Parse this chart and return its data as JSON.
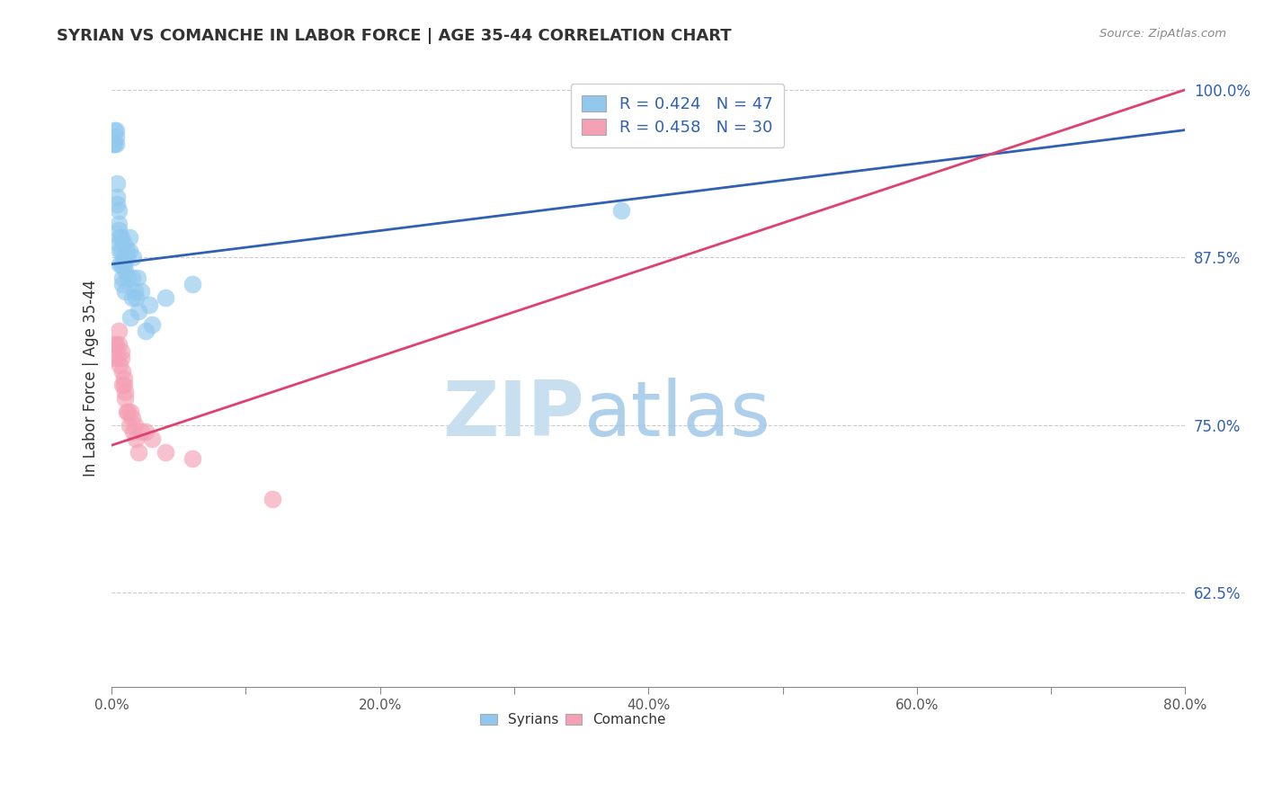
{
  "title": "SYRIAN VS COMANCHE IN LABOR FORCE | AGE 35-44 CORRELATION CHART",
  "source_text": "Source: ZipAtlas.com",
  "ylabel": "In Labor Force | Age 35-44",
  "xlim": [
    0.0,
    0.8
  ],
  "ylim": [
    0.555,
    1.015
  ],
  "xtick_vals": [
    0.0,
    0.1,
    0.2,
    0.3,
    0.4,
    0.5,
    0.6,
    0.7,
    0.8
  ],
  "xtick_labels": [
    "0.0%",
    "",
    "20.0%",
    "",
    "40.0%",
    "",
    "60.0%",
    "",
    "80.0%"
  ],
  "ytick_vals": [
    0.625,
    0.75,
    0.875,
    1.0
  ],
  "ytick_labels": [
    "62.5%",
    "75.0%",
    "87.5%",
    "100.0%"
  ],
  "legend_R_syrian": "0.424",
  "legend_N_syrian": 47,
  "legend_R_comanche": "0.458",
  "legend_N_comanche": 30,
  "syrian_color": "#90C8EE",
  "comanche_color": "#F5A0B5",
  "syrian_line_color": "#3060B0",
  "comanche_line_color": "#E04070",
  "grid_color": "#CCCCCC",
  "background_color": "#FFFFFF",
  "watermark_zip": "ZIP",
  "watermark_atlas": "atlas",
  "watermark_color_zip": "#C8DFF0",
  "watermark_color_atlas": "#A0C8E8",
  "syrian_x": [
    0.001,
    0.002,
    0.002,
    0.003,
    0.003,
    0.003,
    0.004,
    0.004,
    0.004,
    0.005,
    0.005,
    0.005,
    0.005,
    0.006,
    0.006,
    0.006,
    0.007,
    0.007,
    0.007,
    0.008,
    0.008,
    0.008,
    0.009,
    0.009,
    0.009,
    0.01,
    0.01,
    0.011,
    0.011,
    0.012,
    0.013,
    0.013,
    0.014,
    0.015,
    0.015,
    0.016,
    0.017,
    0.018,
    0.019,
    0.02,
    0.022,
    0.025,
    0.028,
    0.03,
    0.04,
    0.06,
    0.38
  ],
  "syrian_y": [
    0.96,
    0.96,
    0.97,
    0.96,
    0.965,
    0.97,
    0.915,
    0.92,
    0.93,
    0.885,
    0.895,
    0.9,
    0.91,
    0.87,
    0.88,
    0.89,
    0.87,
    0.88,
    0.89,
    0.855,
    0.86,
    0.87,
    0.87,
    0.875,
    0.885,
    0.85,
    0.865,
    0.875,
    0.88,
    0.86,
    0.88,
    0.89,
    0.83,
    0.845,
    0.86,
    0.875,
    0.85,
    0.845,
    0.86,
    0.835,
    0.85,
    0.82,
    0.84,
    0.825,
    0.845,
    0.855,
    0.91
  ],
  "comanche_x": [
    0.001,
    0.002,
    0.003,
    0.004,
    0.005,
    0.005,
    0.006,
    0.007,
    0.007,
    0.008,
    0.008,
    0.009,
    0.009,
    0.01,
    0.01,
    0.011,
    0.012,
    0.013,
    0.014,
    0.015,
    0.016,
    0.017,
    0.018,
    0.02,
    0.022,
    0.025,
    0.03,
    0.04,
    0.06,
    0.12
  ],
  "comanche_y": [
    0.8,
    0.81,
    0.81,
    0.8,
    0.81,
    0.82,
    0.795,
    0.8,
    0.805,
    0.78,
    0.79,
    0.78,
    0.785,
    0.77,
    0.775,
    0.76,
    0.76,
    0.75,
    0.76,
    0.755,
    0.745,
    0.75,
    0.74,
    0.73,
    0.745,
    0.745,
    0.74,
    0.73,
    0.725,
    0.695
  ],
  "syrian_line": [
    0.0,
    0.8,
    0.87,
    0.97
  ],
  "comanche_line": [
    0.0,
    0.8,
    0.735,
    1.0
  ]
}
